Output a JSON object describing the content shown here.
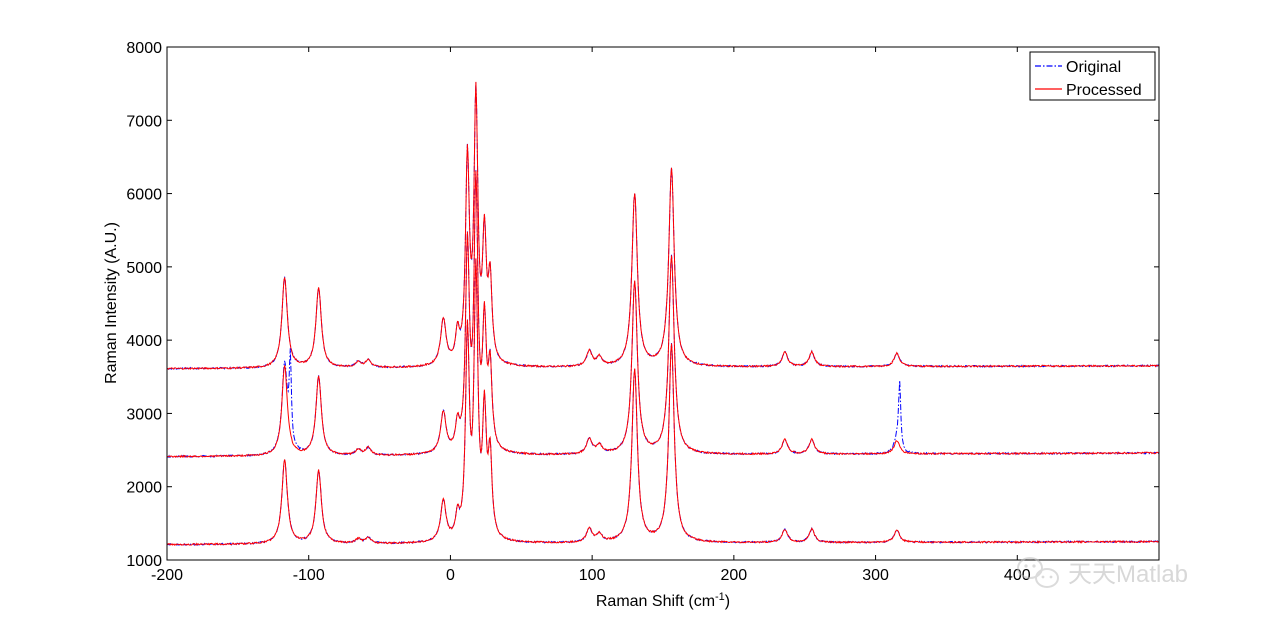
{
  "chart_data": {
    "type": "line",
    "title": "",
    "xlabel": "Raman Shift (cm",
    "xlabel_sup": "-1",
    "xlabel_end": ")",
    "ylabel": "Raman Intensity (A.U.)",
    "xlim": [
      -200,
      500
    ],
    "ylim": [
      1000,
      8000
    ],
    "xticks": [
      "-200",
      "-100",
      "0",
      "100",
      "200",
      "300",
      "400"
    ],
    "xtick_values": [
      -200,
      -100,
      0,
      100,
      200,
      300,
      400
    ],
    "yticks": [
      "1000",
      "2000",
      "3000",
      "4000",
      "5000",
      "6000",
      "7000",
      "8000"
    ],
    "ytick_values": [
      1000,
      2000,
      3000,
      4000,
      5000,
      6000,
      7000,
      8000
    ],
    "grid": false,
    "legend_position": "top-right",
    "series_styles": [
      {
        "name": "Original",
        "color": "#0000ff",
        "dash": "dash-dot"
      },
      {
        "name": "Processed",
        "color": "#ff0000",
        "dash": "solid"
      }
    ],
    "traces": [
      {
        "baseline": 3610,
        "baseline_end": 3650,
        "peaks": [
          [
            -117,
            1230
          ],
          [
            -93,
            1080
          ],
          [
            -65,
            80
          ],
          [
            -58,
            100
          ],
          [
            -5,
            630
          ],
          [
            5,
            400
          ],
          [
            12,
            2750
          ],
          [
            18,
            3560
          ],
          [
            24,
            1650
          ],
          [
            28,
            1100
          ],
          [
            98,
            210
          ],
          [
            105,
            120
          ],
          [
            130,
            2350
          ],
          [
            156,
            2700
          ],
          [
            236,
            200
          ],
          [
            255,
            200
          ],
          [
            315,
            180
          ]
        ],
        "spike": null
      },
      {
        "baseline": 2410,
        "baseline_end": 2460,
        "peaks": [
          [
            -117,
            1230
          ],
          [
            -93,
            1080
          ],
          [
            -65,
            80
          ],
          [
            -58,
            100
          ],
          [
            -5,
            560
          ],
          [
            5,
            350
          ],
          [
            12,
            2750
          ],
          [
            18,
            3560
          ],
          [
            24,
            1650
          ],
          [
            28,
            1100
          ],
          [
            98,
            210
          ],
          [
            105,
            120
          ],
          [
            130,
            2350
          ],
          [
            156,
            2700
          ],
          [
            236,
            200
          ],
          [
            255,
            200
          ],
          [
            315,
            180
          ]
        ],
        "spike": [
          [
            -113,
            1150
          ],
          [
            317,
            900
          ]
        ]
      },
      {
        "baseline": 1210,
        "baseline_end": 1250,
        "peaks": [
          [
            -117,
            1150
          ],
          [
            -93,
            1000
          ],
          [
            -65,
            60
          ],
          [
            -58,
            80
          ],
          [
            -5,
            550
          ],
          [
            5,
            300
          ],
          [
            12,
            2750
          ],
          [
            18,
            3560
          ],
          [
            24,
            1650
          ],
          [
            28,
            1100
          ],
          [
            98,
            190
          ],
          [
            105,
            110
          ],
          [
            130,
            2350
          ],
          [
            156,
            2700
          ],
          [
            236,
            180
          ],
          [
            255,
            180
          ],
          [
            315,
            170
          ]
        ],
        "spike": null
      }
    ]
  },
  "watermark": "天天Matlab",
  "watermark_icon": "wechat-icon"
}
